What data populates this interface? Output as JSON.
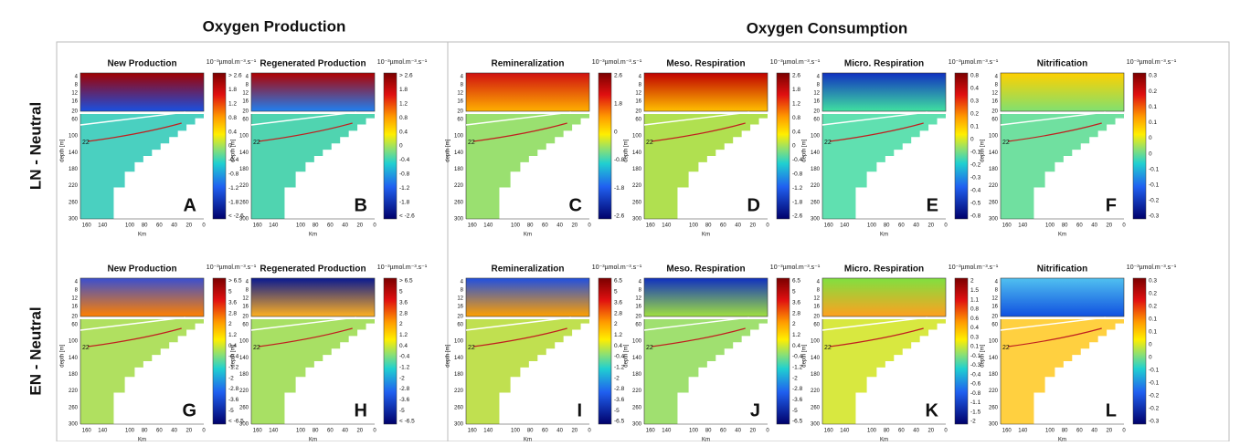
{
  "headers": [
    "Oxygen Production",
    "Oxygen Consumption"
  ],
  "unit": "10⁻³µmol.m⁻³.s⁻¹",
  "depth_label": "depth [m]",
  "km_label": "Km",
  "isotherm": "22",
  "depth_ticks": [
    "4",
    "8",
    "12",
    "16",
    "20",
    "60",
    "100",
    "140",
    "180",
    "220",
    "260",
    "300"
  ],
  "km_ticks": [
    "160",
    "140",
    "100",
    "80",
    "60",
    "40",
    "20",
    "0"
  ],
  "rows": [
    {
      "label": "LN - Neutral",
      "panels": [
        {
          "title": "New Production",
          "letter": "A",
          "colorbar": [
            "> 2.6",
            "1.8",
            "1.2",
            "0.8",
            "0.4",
            "0",
            "-0.4",
            "-0.8",
            "-1.2",
            "-1.8",
            "< -2.6"
          ]
        },
        {
          "title": "Regenerated Production",
          "letter": "B",
          "colorbar": [
            "> 2.6",
            "1.8",
            "1.2",
            "0.8",
            "0.4",
            "0",
            "-0.4",
            "-0.8",
            "-1.2",
            "-1.8",
            "< -2.6"
          ]
        },
        {
          "title": "Remineralization",
          "letter": "C",
          "colorbar": [
            "2.6",
            "1.8",
            "0",
            "-0.8",
            "-1.8",
            "-2.6"
          ]
        },
        {
          "title": "Meso. Respiration",
          "letter": "D",
          "colorbar": [
            "2.6",
            "1.8",
            "1.2",
            "0.8",
            "0.4",
            "0",
            "-0.4",
            "-0.8",
            "-1.2",
            "-1.8",
            "-2.6"
          ]
        },
        {
          "title": "Micro. Respiration",
          "letter": "E",
          "colorbar": [
            "0.8",
            "0.4",
            "0.3",
            "0.2",
            "0.1",
            "0",
            "-0.1",
            "-0.2",
            "-0.3",
            "-0.4",
            "-0.5",
            "-0.8"
          ]
        },
        {
          "title": "Nitrification",
          "letter": "F",
          "colorbar": [
            "0.3",
            "0.2",
            "0.1",
            "0.1",
            "0",
            "0",
            "-0.1",
            "-0.1",
            "-0.2",
            "-0.3"
          ]
        }
      ]
    },
    {
      "label": "EN - Neutral",
      "panels": [
        {
          "title": "New Production",
          "letter": "G",
          "colorbar": [
            "> 6.5",
            "5",
            "3.6",
            "2.8",
            "2",
            "1.2",
            "0.4",
            "-0.4",
            "-1.2",
            "-2",
            "-2.8",
            "-3.6",
            "-5",
            "< -6.5"
          ]
        },
        {
          "title": "Regenerated Production",
          "letter": "H",
          "colorbar": [
            "> 6.5",
            "5",
            "3.6",
            "2.8",
            "2",
            "1.2",
            "0.4",
            "-0.4",
            "-1.2",
            "-2",
            "-2.8",
            "-3.6",
            "-5",
            "< -6.5"
          ]
        },
        {
          "title": "Remineralization",
          "letter": "I",
          "colorbar": [
            "6.5",
            "5",
            "3.6",
            "2.8",
            "2",
            "1.2",
            "0.4",
            "-0.4",
            "-1.2",
            "-2",
            "-2.8",
            "-3.6",
            "-5",
            "-6.5"
          ]
        },
        {
          "title": "Meso. Respiration",
          "letter": "J",
          "colorbar": [
            "6.5",
            "5",
            "3.6",
            "2.8",
            "2",
            "1.2",
            "0.4",
            "-0.4",
            "-1.2",
            "-2",
            "-2.8",
            "-3.6",
            "-5",
            "-6.5"
          ]
        },
        {
          "title": "Micro. Respiration",
          "letter": "K",
          "colorbar": [
            "2",
            "1.5",
            "1.1",
            "0.8",
            "0.6",
            "0.4",
            "0.3",
            "0.1",
            "-0.1",
            "-0.3",
            "-0.4",
            "-0.6",
            "-0.8",
            "-1.1",
            "-1.5",
            "-2"
          ]
        },
        {
          "title": "Nitrification",
          "letter": "L",
          "colorbar": [
            "0.3",
            "0.2",
            "0.2",
            "0.1",
            "0.1",
            "0",
            "0",
            "-0.1",
            "-0.1",
            "-0.2",
            "-0.2",
            "-0.3"
          ]
        }
      ]
    }
  ]
}
